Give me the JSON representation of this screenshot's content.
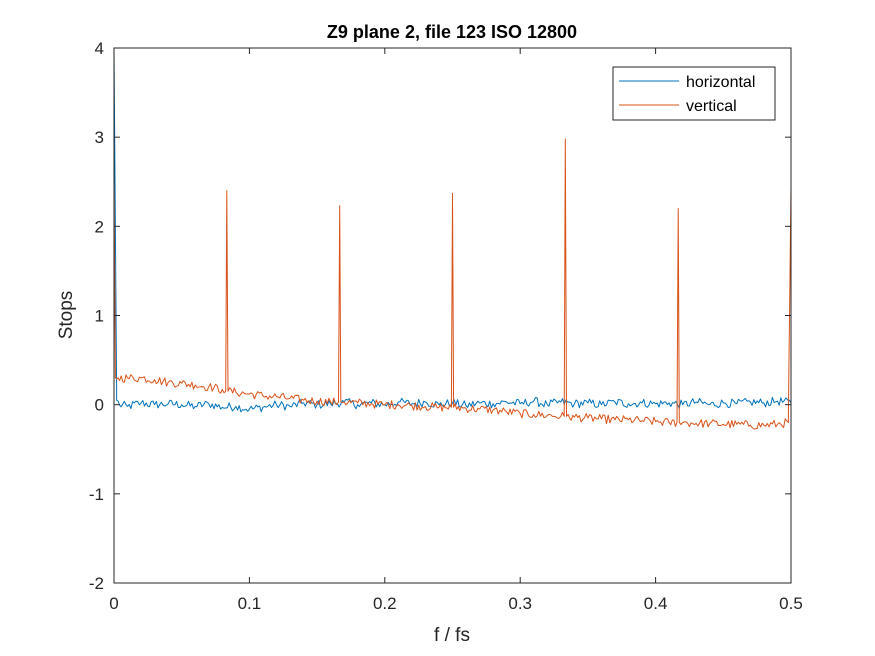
{
  "chart_data": {
    "type": "line",
    "title": "Z9 plane 2, file 123 ISO 12800",
    "xlabel": "f / fs",
    "ylabel": "Stops",
    "xlim": [
      0,
      0.5
    ],
    "ylim": [
      -2,
      4
    ],
    "xticks": [
      0,
      0.1,
      0.2,
      0.3,
      0.4,
      0.5
    ],
    "xtick_labels": [
      "0",
      "0.1",
      "0.2",
      "0.3",
      "0.4",
      "0.5"
    ],
    "yticks": [
      -2,
      -1,
      0,
      1,
      2,
      3,
      4
    ],
    "ytick_labels": [
      "-2",
      "-1",
      "0",
      "1",
      "2",
      "3",
      "4"
    ],
    "grid": false,
    "legend_position": "top-right",
    "series": [
      {
        "name": "horizontal",
        "color": "#0072BD",
        "x": [
          0,
          0.002,
          0.004,
          0.01,
          0.02,
          0.03,
          0.04,
          0.05,
          0.06,
          0.07,
          0.08,
          0.09,
          0.1,
          0.11,
          0.12,
          0.13,
          0.14,
          0.15,
          0.16,
          0.17,
          0.18,
          0.19,
          0.2,
          0.21,
          0.22,
          0.23,
          0.24,
          0.25,
          0.26,
          0.27,
          0.28,
          0.29,
          0.3,
          0.31,
          0.32,
          0.33,
          0.34,
          0.35,
          0.36,
          0.37,
          0.38,
          0.39,
          0.4,
          0.41,
          0.42,
          0.43,
          0.44,
          0.45,
          0.46,
          0.47,
          0.48,
          0.49,
          0.5
        ],
        "y": [
          4.0,
          0.05,
          0.0,
          -0.02,
          0.02,
          0.0,
          0.01,
          0.0,
          -0.02,
          0.01,
          -0.03,
          -0.02,
          -0.05,
          -0.03,
          0.0,
          -0.02,
          0.02,
          0.0,
          0.01,
          0.03,
          0.0,
          0.02,
          0.0,
          0.03,
          0.01,
          0.03,
          0.0,
          0.02,
          -0.01,
          0.02,
          0.01,
          0.03,
          0.01,
          0.04,
          0.0,
          0.03,
          0.01,
          0.02,
          0.0,
          0.03,
          0.01,
          0.02,
          0.01,
          0.02,
          0.0,
          0.03,
          0.0,
          0.02,
          0.01,
          0.03,
          0.02,
          0.04,
          0.02
        ]
      },
      {
        "name": "vertical",
        "color": "#D95319",
        "x": [
          0,
          0.001,
          0.003,
          0.01,
          0.02,
          0.03,
          0.04,
          0.05,
          0.06,
          0.07,
          0.08,
          0.0825,
          0.0833,
          0.0842,
          0.09,
          0.1,
          0.11,
          0.12,
          0.13,
          0.14,
          0.15,
          0.16,
          0.1658,
          0.1667,
          0.1675,
          0.17,
          0.18,
          0.19,
          0.2,
          0.21,
          0.22,
          0.23,
          0.24,
          0.2492,
          0.25,
          0.2508,
          0.26,
          0.27,
          0.28,
          0.29,
          0.3,
          0.31,
          0.32,
          0.33,
          0.3325,
          0.3333,
          0.3342,
          0.34,
          0.35,
          0.36,
          0.37,
          0.38,
          0.39,
          0.4,
          0.41,
          0.4158,
          0.4167,
          0.4175,
          0.42,
          0.43,
          0.44,
          0.45,
          0.46,
          0.47,
          0.48,
          0.49,
          0.498,
          0.5
        ],
        "y": [
          2.6,
          0.3,
          0.3,
          0.3,
          0.3,
          0.28,
          0.25,
          0.24,
          0.22,
          0.2,
          0.17,
          0.15,
          2.4,
          0.15,
          0.14,
          0.12,
          0.1,
          0.09,
          0.07,
          0.05,
          0.04,
          0.03,
          0.03,
          2.23,
          0.03,
          0.03,
          0.02,
          0.01,
          0.0,
          0.0,
          -0.01,
          -0.02,
          -0.03,
          -0.03,
          2.37,
          -0.03,
          -0.04,
          -0.05,
          -0.06,
          -0.08,
          -0.1,
          -0.11,
          -0.12,
          -0.13,
          -0.13,
          2.98,
          -0.13,
          -0.14,
          -0.15,
          -0.16,
          -0.17,
          -0.17,
          -0.18,
          -0.19,
          -0.2,
          -0.2,
          2.2,
          -0.2,
          -0.2,
          -0.21,
          -0.21,
          -0.22,
          -0.22,
          -0.23,
          -0.23,
          -0.22,
          -0.2,
          2.45
        ]
      }
    ]
  }
}
